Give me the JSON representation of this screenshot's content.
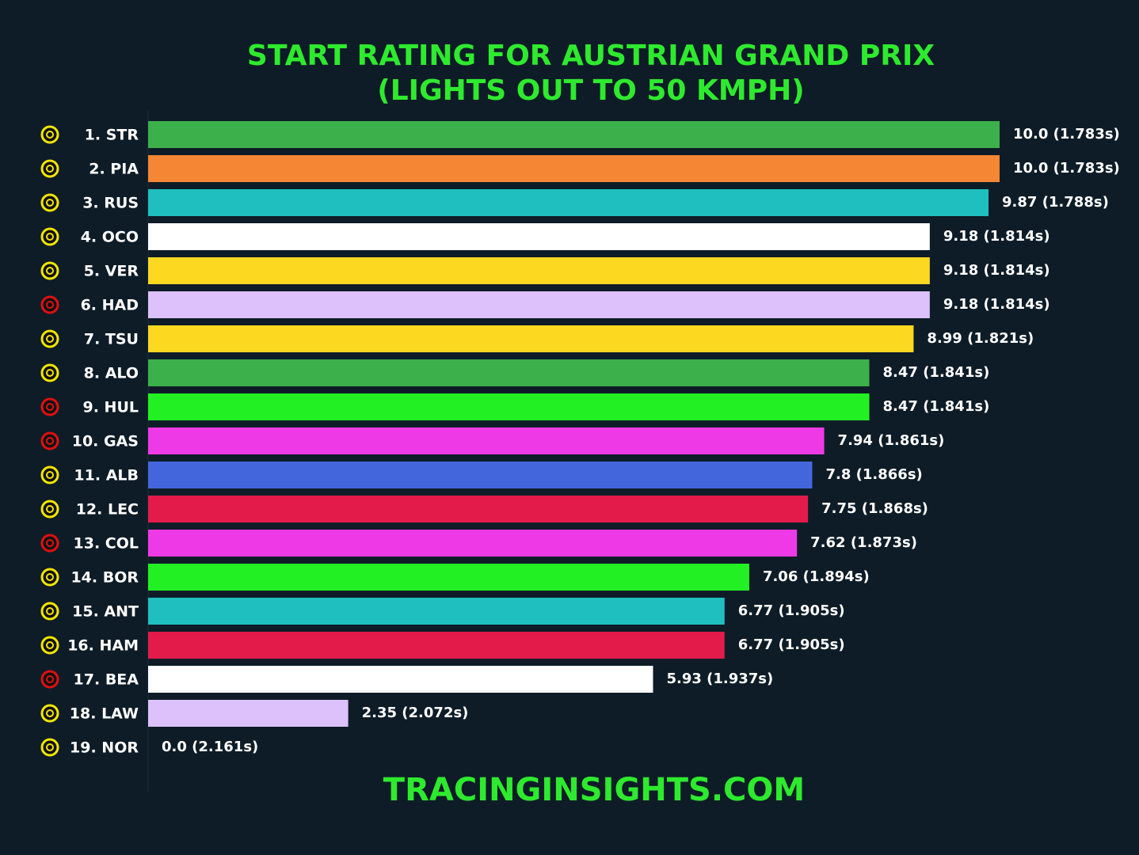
{
  "chart_data": {
    "type": "bar",
    "orientation": "horizontal",
    "title": "START RATING FOR AUSTRIAN GRAND PRIX",
    "subtitle": "(LIGHTS OUT TO 50 KMPH)",
    "footer": "TRACINGINSIGHTS.COM",
    "categories": [
      "1. STR",
      "2. PIA",
      "3. RUS",
      "4. OCO",
      "5. VER",
      "6. HAD",
      "7. TSU",
      "8. ALO",
      "9. HUL",
      "10. GAS",
      "11. ALB",
      "12. LEC",
      "13. COL",
      "14. BOR",
      "15. ANT",
      "16. HAM",
      "17. BEA",
      "18. LAW",
      "19. NOR"
    ],
    "values": [
      10.0,
      10.0,
      9.87,
      9.18,
      9.18,
      9.18,
      8.99,
      8.47,
      8.47,
      7.94,
      7.8,
      7.75,
      7.62,
      7.06,
      6.77,
      6.77,
      5.93,
      2.35,
      0.0
    ],
    "value_labels": [
      "10.0 (1.783s)",
      "10.0 (1.783s)",
      "9.87 (1.788s)",
      "9.18 (1.814s)",
      "9.18 (1.814s)",
      "9.18 (1.814s)",
      "8.99 (1.821s)",
      "8.47 (1.841s)",
      "8.47 (1.841s)",
      "7.94 (1.861s)",
      "7.8 (1.866s)",
      "7.75 (1.868s)",
      "7.62 (1.873s)",
      "7.06 (1.894s)",
      "6.77 (1.905s)",
      "6.77 (1.905s)",
      "5.93 (1.937s)",
      "2.35 (2.072s)",
      "0.0 (2.161s)"
    ],
    "colors": [
      "#3cb04a",
      "#f58634",
      "#1fbfc0",
      "#ffffff",
      "#fcd821",
      "#dcc1fb",
      "#fcd821",
      "#3cb04a",
      "#22f022",
      "#ee3ae6",
      "#4466dd",
      "#e31b4b",
      "#ee3ae6",
      "#22f022",
      "#1fbfc0",
      "#e31b4b",
      "#ffffff",
      "#dcc1fb",
      "#f58634"
    ],
    "tyre_colors": [
      "#f2e600",
      "#f2e600",
      "#f2e600",
      "#f2e600",
      "#f2e600",
      "#e01010",
      "#f2e600",
      "#f2e600",
      "#e01010",
      "#e01010",
      "#f2e600",
      "#f2e600",
      "#e01010",
      "#f2e600",
      "#f2e600",
      "#f2e600",
      "#e01010",
      "#f2e600",
      "#f2e600"
    ],
    "xlim": [
      0,
      10
    ]
  }
}
